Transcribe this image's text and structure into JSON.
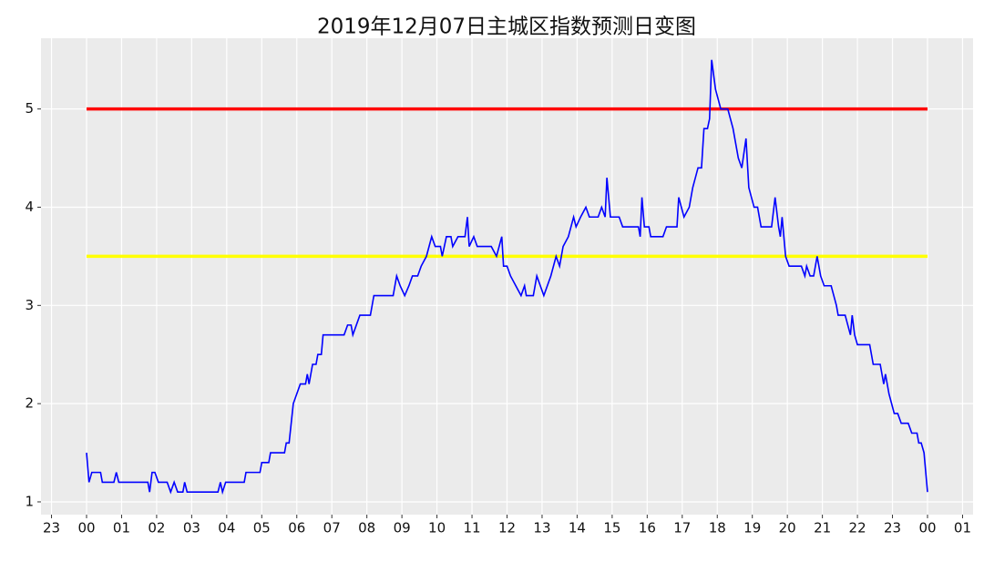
{
  "chart_data": {
    "type": "line",
    "title": "2019年12月07日主城区指数预测日变图",
    "xlim": [
      -1.3,
      25.3
    ],
    "xticks": [
      {
        "value": -1,
        "label": "23"
      },
      {
        "value": 0,
        "label": "00"
      },
      {
        "value": 1,
        "label": "01"
      },
      {
        "value": 2,
        "label": "02"
      },
      {
        "value": 3,
        "label": "03"
      },
      {
        "value": 4,
        "label": "04"
      },
      {
        "value": 5,
        "label": "05"
      },
      {
        "value": 6,
        "label": "06"
      },
      {
        "value": 7,
        "label": "07"
      },
      {
        "value": 8,
        "label": "08"
      },
      {
        "value": 9,
        "label": "09"
      },
      10,
      11,
      12,
      13,
      14,
      15,
      16,
      17,
      18,
      19,
      20,
      21,
      22,
      23,
      {
        "value": 24,
        "label": "00"
      },
      {
        "value": 25,
        "label": "01"
      }
    ],
    "ylim": [
      0.87,
      5.72
    ],
    "yticks": [
      1,
      2,
      3,
      4,
      5
    ],
    "grid": true,
    "hlines": [
      {
        "y": 5,
        "x": [
          0,
          24
        ],
        "color": "#ff0000"
      },
      {
        "y": 3.5,
        "x": [
          0,
          24
        ],
        "color": "#ffff00"
      }
    ],
    "series": [
      {
        "color": "#0000ff",
        "x": [
          0,
          0.07,
          0.15,
          0.4,
          0.45,
          0.78,
          0.85,
          0.92,
          1.75,
          1.8,
          1.87,
          1.95,
          2.05,
          2.3,
          2.4,
          2.5,
          2.6,
          2.75,
          2.8,
          2.87,
          3.75,
          3.82,
          3.88,
          3.97,
          4.5,
          4.55,
          4.95,
          5.0,
          5.2,
          5.25,
          5.65,
          5.7,
          5.78,
          5.9,
          6.0,
          6.1,
          6.25,
          6.3,
          6.35,
          6.45,
          6.55,
          6.6,
          6.7,
          6.75,
          7.35,
          7.45,
          7.55,
          7.6,
          7.8,
          8.1,
          8.2,
          8.75,
          8.85,
          8.95,
          9.08,
          9.2,
          9.3,
          9.45,
          9.55,
          9.7,
          9.85,
          9.95,
          10.1,
          10.15,
          10.27,
          10.4,
          10.45,
          10.6,
          10.8,
          10.87,
          10.92,
          11.05,
          11.15,
          11.55,
          11.7,
          11.85,
          11.9,
          12.0,
          12.1,
          12.25,
          12.4,
          12.5,
          12.55,
          12.75,
          12.85,
          12.95,
          13.05,
          13.25,
          13.4,
          13.5,
          13.6,
          13.75,
          13.9,
          13.97,
          14.1,
          14.25,
          14.35,
          14.6,
          14.7,
          14.8,
          14.85,
          14.95,
          15.2,
          15.3,
          15.75,
          15.8,
          15.85,
          15.92,
          16.05,
          16.1,
          16.45,
          16.55,
          16.85,
          16.9,
          17.05,
          17.2,
          17.3,
          17.45,
          17.55,
          17.62,
          17.72,
          17.78,
          17.84,
          17.95,
          18.1,
          18.3,
          18.45,
          18.6,
          18.7,
          18.82,
          18.9,
          19.05,
          19.15,
          19.25,
          19.55,
          19.65,
          19.75,
          19.8,
          19.85,
          19.95,
          20.05,
          20.4,
          20.5,
          20.55,
          20.65,
          20.75,
          20.85,
          20.95,
          21.05,
          21.25,
          21.4,
          21.45,
          21.65,
          21.8,
          21.85,
          21.92,
          22.0,
          22.35,
          22.45,
          22.65,
          22.75,
          22.8,
          22.9,
          23.05,
          23.15,
          23.25,
          23.45,
          23.55,
          23.7,
          23.75,
          23.82,
          23.9,
          24.0
        ],
        "values": [
          1.5,
          1.2,
          1.3,
          1.3,
          1.2,
          1.2,
          1.3,
          1.2,
          1.2,
          1.1,
          1.3,
          1.3,
          1.2,
          1.2,
          1.1,
          1.2,
          1.1,
          1.1,
          1.2,
          1.1,
          1.1,
          1.2,
          1.1,
          1.2,
          1.2,
          1.3,
          1.3,
          1.4,
          1.4,
          1.5,
          1.5,
          1.6,
          1.6,
          2.0,
          2.1,
          2.2,
          2.2,
          2.3,
          2.2,
          2.4,
          2.4,
          2.5,
          2.5,
          2.7,
          2.7,
          2.8,
          2.8,
          2.7,
          2.9,
          2.9,
          3.1,
          3.1,
          3.3,
          3.2,
          3.1,
          3.2,
          3.3,
          3.3,
          3.4,
          3.5,
          3.7,
          3.6,
          3.6,
          3.5,
          3.7,
          3.7,
          3.6,
          3.7,
          3.7,
          3.9,
          3.6,
          3.7,
          3.6,
          3.6,
          3.5,
          3.7,
          3.4,
          3.4,
          3.3,
          3.2,
          3.1,
          3.2,
          3.1,
          3.1,
          3.3,
          3.2,
          3.1,
          3.3,
          3.5,
          3.4,
          3.6,
          3.7,
          3.9,
          3.8,
          3.9,
          4.0,
          3.9,
          3.9,
          4.0,
          3.9,
          4.3,
          3.9,
          3.9,
          3.8,
          3.8,
          3.7,
          4.1,
          3.8,
          3.8,
          3.7,
          3.7,
          3.8,
          3.8,
          4.1,
          3.9,
          4.0,
          4.2,
          4.4,
          4.4,
          4.8,
          4.8,
          4.9,
          5.5,
          5.2,
          5.0,
          5.0,
          4.8,
          4.5,
          4.4,
          4.7,
          4.2,
          4.0,
          4.0,
          3.8,
          3.8,
          4.1,
          3.8,
          3.7,
          3.9,
          3.5,
          3.4,
          3.4,
          3.3,
          3.4,
          3.3,
          3.3,
          3.5,
          3.3,
          3.2,
          3.2,
          3.0,
          2.9,
          2.9,
          2.7,
          2.9,
          2.7,
          2.6,
          2.6,
          2.4,
          2.4,
          2.2,
          2.3,
          2.1,
          1.9,
          1.9,
          1.8,
          1.8,
          1.7,
          1.7,
          1.6,
          1.6,
          1.5,
          1.1
        ]
      }
    ]
  }
}
